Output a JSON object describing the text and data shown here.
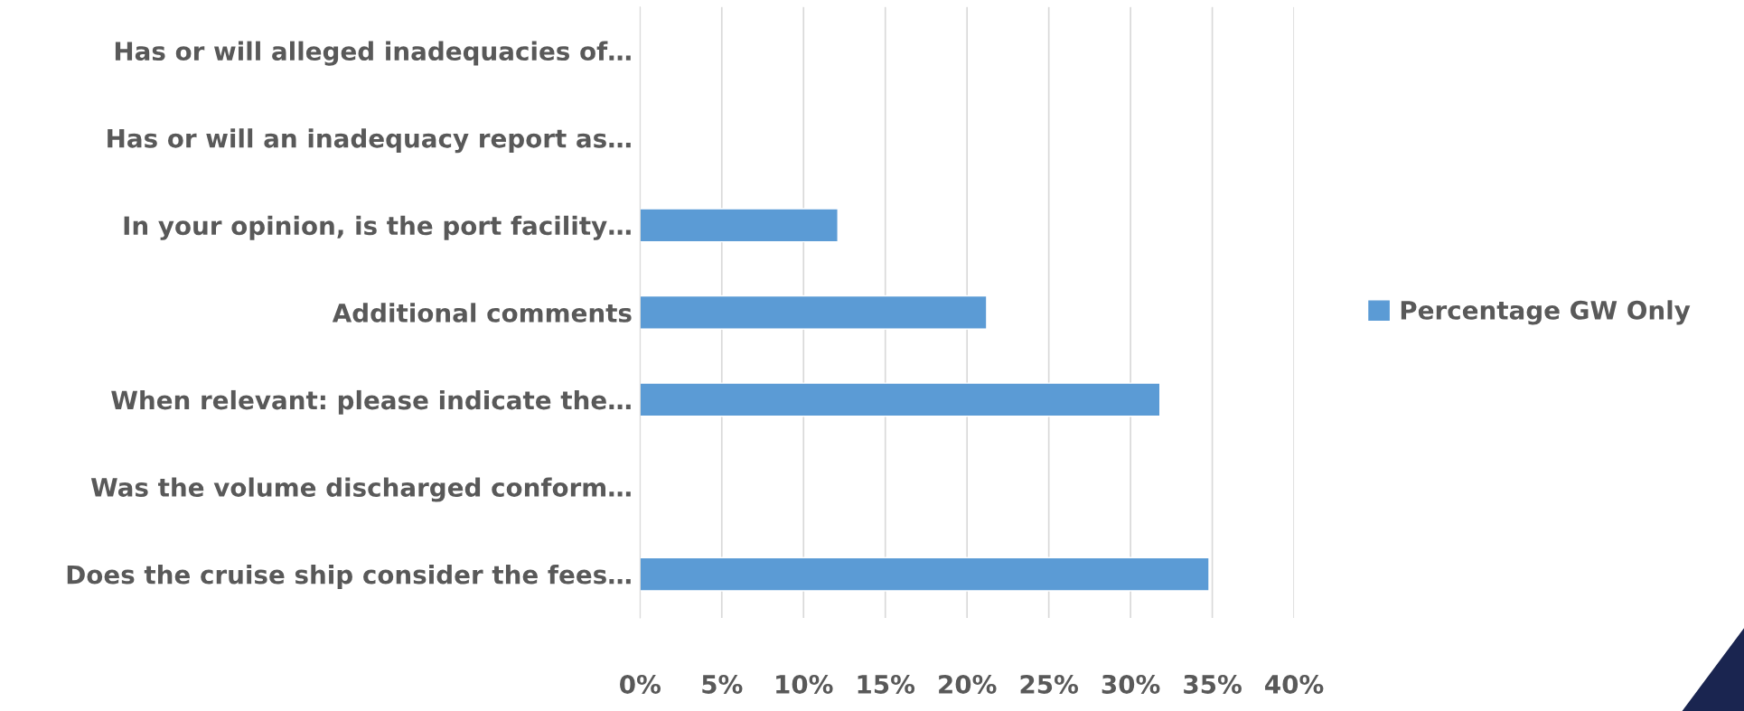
{
  "chart_data": {
    "type": "bar",
    "orientation": "horizontal",
    "categories": [
      "Has or will alleged inadequacies of…",
      "Has or will an inadequacy report as…",
      "In your opinion, is the port facility…",
      "Additional comments",
      "When relevant: please indicate the…",
      "Was the volume discharged conform…",
      "Does the cruise ship consider the fees…"
    ],
    "series": [
      {
        "name": "Percentage GW Only",
        "color": "#5b9bd5",
        "values": [
          0,
          0,
          12.1,
          21.2,
          31.8,
          0,
          34.8
        ]
      }
    ],
    "xlim": [
      0,
      40
    ],
    "xticks": [
      {
        "value": 0,
        "label": "0%"
      },
      {
        "value": 5,
        "label": "5%"
      },
      {
        "value": 10,
        "label": "10%"
      },
      {
        "value": 15,
        "label": "15%"
      },
      {
        "value": 20,
        "label": "20%"
      },
      {
        "value": 25,
        "label": "25%"
      },
      {
        "value": 30,
        "label": "30%"
      },
      {
        "value": 35,
        "label": "35%"
      },
      {
        "value": 40,
        "label": "40%"
      }
    ],
    "grid": "x",
    "legend": "right"
  }
}
